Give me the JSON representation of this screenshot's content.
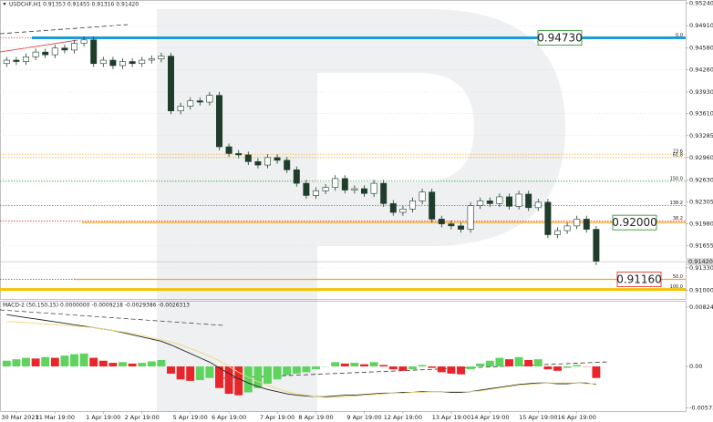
{
  "chart_data": [
    {
      "type": "candlestick",
      "title": "USDCHF,H1 0.91353 0.91455 0.91316 0.91420",
      "categories": [
        null,
        "30 Mar 2021",
        null,
        null,
        null,
        "31 Mar 19:00",
        null,
        null,
        null,
        null,
        "1 Apr 19:00",
        null,
        null,
        null,
        "2 Apr 19:00",
        null,
        null,
        null,
        null,
        "5 Apr 19:00",
        null,
        null,
        null,
        "6 Apr 19:00",
        null,
        null,
        null,
        null,
        "7 Apr 19:00",
        null,
        null,
        null,
        "8 Apr 19:00",
        null,
        null,
        null,
        null,
        "9 Apr 19:00",
        null,
        null,
        null,
        "12 Apr 19:00",
        null,
        null,
        null,
        null,
        "13 Apr 19:00",
        null,
        null,
        null,
        "14 Apr 19:00",
        null,
        null,
        null,
        null,
        "15 Apr 19:00",
        null,
        null,
        null,
        "16 Apr 19:00",
        null,
        null
      ],
      "open": [
        0.9435,
        0.944,
        0.9438,
        0.9445,
        0.9452,
        0.9448,
        0.9458,
        0.9455,
        0.9465,
        0.947,
        0.9435,
        0.944,
        0.9432,
        0.9438,
        0.9435,
        0.944,
        0.9442,
        0.9446,
        0.9365,
        0.9372,
        0.938,
        0.9378,
        0.9388,
        0.9312,
        0.9302,
        0.93,
        0.929,
        0.9285,
        0.9296,
        0.9292,
        0.9278,
        0.9258,
        0.924,
        0.9247,
        0.9252,
        0.9265,
        0.9248,
        0.925,
        0.9243,
        0.9258,
        0.9228,
        0.9215,
        0.922,
        0.9232,
        0.9245,
        0.9205,
        0.9198,
        0.9195,
        0.919,
        0.9225,
        0.9232,
        0.9228,
        0.9238,
        0.9224,
        0.9242,
        0.9222,
        0.923,
        0.9182,
        0.9188,
        0.9195,
        0.9205,
        0.919
      ],
      "high": [
        0.9445,
        0.9445,
        0.945,
        0.9457,
        0.9457,
        0.9463,
        0.9463,
        0.947,
        0.9475,
        0.9475,
        0.9445,
        0.9445,
        0.9443,
        0.9443,
        0.9445,
        0.9447,
        0.9451,
        0.9451,
        0.9377,
        0.9385,
        0.9385,
        0.9393,
        0.9393,
        0.9317,
        0.9307,
        0.9305,
        0.9295,
        0.9301,
        0.9301,
        0.9297,
        0.9283,
        0.9263,
        0.9252,
        0.9257,
        0.927,
        0.927,
        0.9255,
        0.9255,
        0.9263,
        0.9263,
        0.9233,
        0.9225,
        0.9237,
        0.925,
        0.925,
        0.921,
        0.9203,
        0.92,
        0.923,
        0.9237,
        0.9237,
        0.9243,
        0.9243,
        0.9247,
        0.9247,
        0.9235,
        0.9235,
        0.9193,
        0.92,
        0.921,
        0.921,
        0.9195
      ],
      "low": [
        0.943,
        0.9433,
        0.9433,
        0.944,
        0.9443,
        0.9443,
        0.945,
        0.945,
        0.946,
        0.943,
        0.943,
        0.9427,
        0.9427,
        0.943,
        0.943,
        0.9435,
        0.9437,
        0.936,
        0.936,
        0.9367,
        0.9373,
        0.9373,
        0.9307,
        0.9297,
        0.9295,
        0.9285,
        0.928,
        0.928,
        0.9287,
        0.9273,
        0.9253,
        0.9235,
        0.9235,
        0.9242,
        0.9247,
        0.9243,
        0.9243,
        0.9238,
        0.9238,
        0.9223,
        0.921,
        0.921,
        0.9215,
        0.9227,
        0.92,
        0.9193,
        0.919,
        0.9185,
        0.9185,
        0.922,
        0.9223,
        0.9223,
        0.9219,
        0.9219,
        0.9217,
        0.9217,
        0.9177,
        0.9177,
        0.9183,
        0.919,
        0.9185,
        0.9137
      ],
      "close": [
        0.944,
        0.9438,
        0.9445,
        0.9452,
        0.9448,
        0.9458,
        0.9455,
        0.9465,
        0.947,
        0.9435,
        0.944,
        0.9432,
        0.9438,
        0.9435,
        0.944,
        0.9442,
        0.9446,
        0.9365,
        0.9372,
        0.938,
        0.9378,
        0.9388,
        0.9312,
        0.9302,
        0.93,
        0.929,
        0.9285,
        0.9296,
        0.9292,
        0.9278,
        0.9258,
        0.924,
        0.9247,
        0.9252,
        0.9265,
        0.9248,
        0.925,
        0.9243,
        0.9258,
        0.9228,
        0.9215,
        0.922,
        0.9232,
        0.9245,
        0.9205,
        0.9198,
        0.9195,
        0.919,
        0.9225,
        0.9232,
        0.9228,
        0.9238,
        0.9224,
        0.9242,
        0.9222,
        0.923,
        0.9182,
        0.9188,
        0.9195,
        0.9205,
        0.919,
        0.9142
      ],
      "up_color": "#ffffff",
      "down_color": "#1f3d2a",
      "outline_color": "#1f3d2a",
      "ylim": [
        0.9087,
        0.9529
      ],
      "yticks": [
        {
          "value": 0.9524,
          "label": "0.95240"
        },
        {
          "value": 0.9491,
          "label": "0.94910"
        },
        {
          "value": 0.9458,
          "label": "0.94580"
        },
        {
          "value": 0.9426,
          "label": "0.94260"
        },
        {
          "value": 0.9393,
          "label": "0.93930"
        },
        {
          "value": 0.9361,
          "label": "0.93610"
        },
        {
          "value": 0.93285,
          "label": "0.93285"
        },
        {
          "value": 0.9296,
          "label": "0.92960"
        },
        {
          "value": 0.9263,
          "label": "0.92630"
        },
        {
          "value": 0.92305,
          "label": "0.92305"
        },
        {
          "value": 0.9198,
          "label": "0.91980"
        },
        {
          "value": 0.91655,
          "label": "0.91655"
        },
        {
          "value": 0.9133,
          "label": "0.91330"
        },
        {
          "value": 0.91,
          "label": "0.91000"
        }
      ],
      "grid": true,
      "last_price": {
        "value": 0.9142,
        "label": "0.91420"
      },
      "levels": [
        {
          "value": 0.9473,
          "label": "0.94730",
          "color": "#1e9bd7",
          "text_color": "#1e8a1e"
        },
        {
          "value": 0.92,
          "label": "0.92000",
          "color": "#f5a623",
          "text_color": "#1e8a1e"
        },
        {
          "value": 0.9116,
          "label": "0.91160",
          "color": "#f5a623",
          "text_color": "#e02020"
        }
      ],
      "fibo": [
        {
          "value": 0.9473,
          "label": "0.0",
          "color": "#e02020"
        },
        {
          "value": 0.9301,
          "label": "23.6",
          "color": "#f5a623"
        },
        {
          "value": 0.9296,
          "label": "61.8",
          "color": "#f5a623"
        },
        {
          "value": 0.9261,
          "label": "150.0",
          "color": "#2e9e2e"
        },
        {
          "value": 0.9225,
          "label": "138.2",
          "color": "#2e9e2e"
        },
        {
          "value": 0.9202,
          "label": "38.2",
          "color": "#e02020"
        },
        {
          "value": 0.9116,
          "label": "50.0",
          "color": "#e02020"
        },
        {
          "value": 0.9101,
          "label": "100.0",
          "color": "#f2c200",
          "thick": true
        }
      ]
    },
    {
      "type": "histogram",
      "title": "MACD-2 (50,150,15) 0.0000000 -0.0009218 -0.0029386 -0.0026313",
      "values": [
        0.0008,
        0.001,
        0.0012,
        0.0011,
        0.0013,
        0.0012,
        0.0015,
        0.0017,
        0.0018,
        0.0012,
        0.0008,
        0.0005,
        0.0006,
        0.0004,
        0.0005,
        0.0007,
        0.0009,
        -0.001,
        -0.0018,
        -0.002,
        -0.0019,
        -0.0016,
        -0.003,
        -0.0038,
        -0.004,
        -0.0036,
        -0.003,
        -0.0024,
        -0.0018,
        -0.0012,
        -0.001,
        -0.0008,
        -0.0004,
        0.0,
        0.0006,
        0.0004,
        0.0005,
        0.0003,
        0.0006,
        0.0002,
        -0.0004,
        -0.0006,
        -0.0004,
        0.0002,
        -0.0002,
        -0.0008,
        -0.001,
        -0.0011,
        -0.0004,
        0.0004,
        0.0008,
        0.0012,
        0.001,
        0.0013,
        0.0009,
        0.001,
        -0.0004,
        -0.0006,
        -0.0002,
        0.0002,
        0.0,
        -0.0016
      ],
      "up_color": "#5ed35e",
      "down_color": "#e8252a",
      "lines": [
        {
          "color": "#222222",
          "values": [
            0.0072,
            0.007,
            0.0068,
            0.0066,
            0.0064,
            0.0062,
            0.006,
            0.0058,
            0.0056,
            0.0054,
            0.0052,
            0.005,
            0.0047,
            0.0044,
            0.0041,
            0.0038,
            0.0035,
            0.003,
            0.0024,
            0.0018,
            0.0012,
            0.0006,
            -0.0002,
            -0.001,
            -0.0017,
            -0.0023,
            -0.0028,
            -0.0032,
            -0.0035,
            -0.0038,
            -0.004,
            -0.0041,
            -0.0042,
            -0.0042,
            -0.0041,
            -0.004,
            -0.004,
            -0.0039,
            -0.0038,
            -0.0037,
            -0.0037,
            -0.0036,
            -0.0036,
            -0.0035,
            -0.0035,
            -0.0035,
            -0.0036,
            -0.0036,
            -0.0035,
            -0.0033,
            -0.0031,
            -0.0029,
            -0.0027,
            -0.0025,
            -0.0024,
            -0.0023,
            -0.0023,
            -0.0024,
            -0.0024,
            -0.0023,
            -0.0023,
            -0.0025
          ]
        },
        {
          "color": "#f2d675",
          "values": [
            0.0062,
            0.0062,
            0.0061,
            0.006,
            0.0059,
            0.0058,
            0.0057,
            0.0056,
            0.0055,
            0.0054,
            0.0052,
            0.005,
            0.0048,
            0.0046,
            0.0043,
            0.004,
            0.0037,
            0.0034,
            0.003,
            0.0025,
            0.002,
            0.0014,
            0.0008,
            0.0,
            -0.0008,
            -0.0015,
            -0.0021,
            -0.0026,
            -0.0031,
            -0.0035,
            -0.0038,
            -0.004,
            -0.0042,
            -0.0043,
            -0.0043,
            -0.0042,
            -0.0041,
            -0.004,
            -0.0039,
            -0.0038,
            -0.0037,
            -0.0037,
            -0.0036,
            -0.0036,
            -0.0035,
            -0.0035,
            -0.0035,
            -0.0035,
            -0.0035,
            -0.0034,
            -0.0032,
            -0.003,
            -0.0028,
            -0.0026,
            -0.0025,
            -0.0024,
            -0.0023,
            -0.0023,
            -0.0023,
            -0.0023,
            -0.0024,
            -0.0024
          ]
        }
      ],
      "ylim": [
        -0.0062,
        0.009
      ],
      "yticks": [
        0.008247,
        {
          "value": 0,
          "label": "0.00"
        },
        -0.005736
      ]
    }
  ]
}
